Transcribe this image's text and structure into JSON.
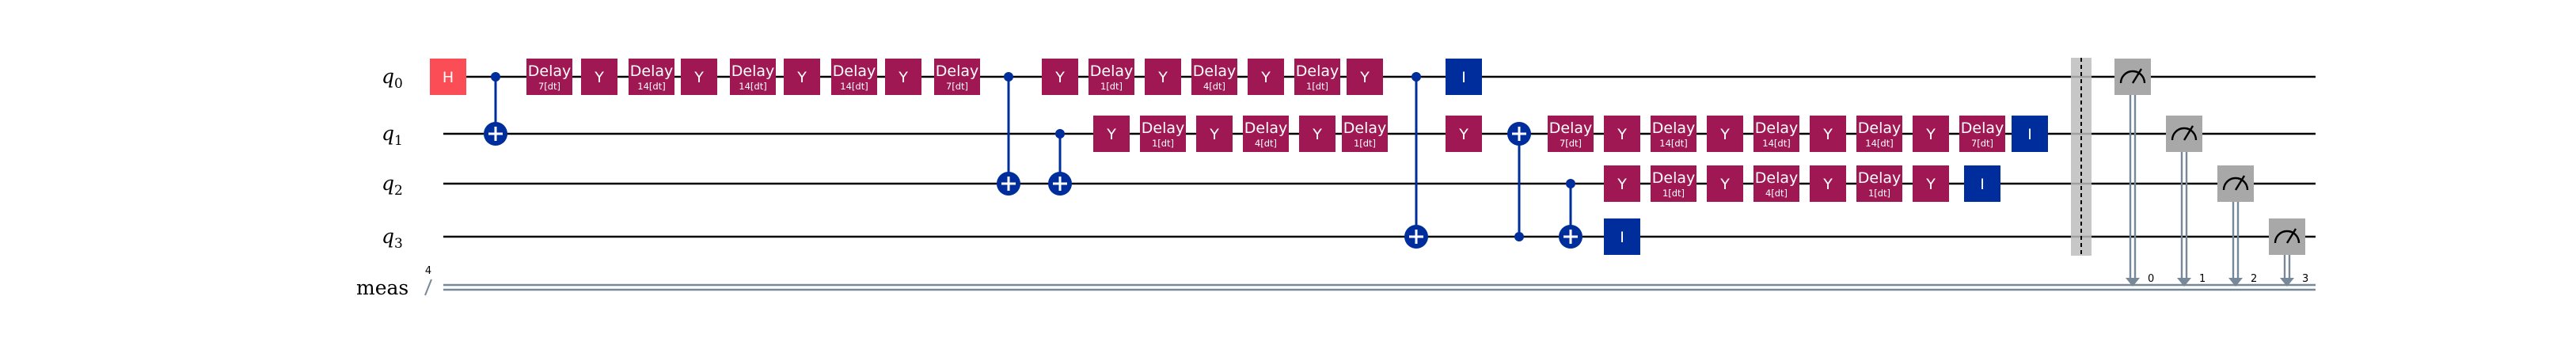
{
  "colors": {
    "h_gate": "#fa4d56",
    "y_gate": "#9f1853",
    "delay_gate": "#9f1853",
    "control": "#002d9c",
    "id_gate": "#002d9c",
    "measure": "#a8a8a8",
    "barrier": "#bdbdbd",
    "classical": "#778899",
    "wire": "#000000"
  },
  "circuit": {
    "qubit_labels": [
      {
        "name": "q",
        "index": "0"
      },
      {
        "name": "q",
        "index": "1"
      },
      {
        "name": "q",
        "index": "2"
      },
      {
        "name": "q",
        "index": "3"
      }
    ],
    "classical_label": "meas",
    "classical_width": "4",
    "gates": [
      {
        "type": "H",
        "qubit": 0,
        "col": 0,
        "label": "H"
      },
      {
        "type": "CX",
        "control": 0,
        "target": 1,
        "col": 1
      },
      {
        "type": "Delay",
        "qubit": 0,
        "col": 2,
        "label": "Delay",
        "param": "7[dt]"
      },
      {
        "type": "Y",
        "qubit": 0,
        "col": 3,
        "label": "Y"
      },
      {
        "type": "Delay",
        "qubit": 0,
        "col": 4,
        "label": "Delay",
        "param": "14[dt]"
      },
      {
        "type": "Y",
        "qubit": 0,
        "col": 5,
        "label": "Y"
      },
      {
        "type": "Delay",
        "qubit": 0,
        "col": 6,
        "label": "Delay",
        "param": "14[dt]"
      },
      {
        "type": "Y",
        "qubit": 0,
        "col": 7,
        "label": "Y"
      },
      {
        "type": "Delay",
        "qubit": 0,
        "col": 8,
        "label": "Delay",
        "param": "14[dt]"
      },
      {
        "type": "Y",
        "qubit": 0,
        "col": 9,
        "label": "Y"
      },
      {
        "type": "Delay",
        "qubit": 0,
        "col": 10,
        "label": "Delay",
        "param": "7[dt]"
      },
      {
        "type": "CX",
        "control": 0,
        "target": 2,
        "col": 11
      },
      {
        "type": "CX",
        "control": 1,
        "target": 2,
        "col": 12
      },
      {
        "type": "Y",
        "qubit": 0,
        "col": 12,
        "label": "Y"
      },
      {
        "type": "Delay",
        "qubit": 0,
        "col": 13,
        "label": "Delay",
        "param": "1[dt]"
      },
      {
        "type": "Y",
        "qubit": 0,
        "col": 14,
        "label": "Y"
      },
      {
        "type": "Delay",
        "qubit": 0,
        "col": 15,
        "label": "Delay",
        "param": "4[dt]"
      },
      {
        "type": "Y",
        "qubit": 0,
        "col": 16,
        "label": "Y"
      },
      {
        "type": "Delay",
        "qubit": 0,
        "col": 17,
        "label": "Delay",
        "param": "1[dt]"
      },
      {
        "type": "Y",
        "qubit": 0,
        "col": 18,
        "label": "Y"
      },
      {
        "type": "Y",
        "qubit": 1,
        "col": 13,
        "label": "Y"
      },
      {
        "type": "Delay",
        "qubit": 1,
        "col": 14,
        "label": "Delay",
        "param": "1[dt]"
      },
      {
        "type": "Y",
        "qubit": 1,
        "col": 15,
        "label": "Y"
      },
      {
        "type": "Delay",
        "qubit": 1,
        "col": 16,
        "label": "Delay",
        "param": "4[dt]"
      },
      {
        "type": "Y",
        "qubit": 1,
        "col": 17,
        "label": "Y"
      },
      {
        "type": "Delay",
        "qubit": 1,
        "col": 18,
        "label": "Delay",
        "param": "1[dt]"
      },
      {
        "type": "CX",
        "control": 0,
        "target": 3,
        "col": 19
      },
      {
        "type": "I",
        "qubit": 0,
        "col": 20,
        "label": "I"
      },
      {
        "type": "Y",
        "qubit": 1,
        "col": 20,
        "label": "Y"
      },
      {
        "type": "CX",
        "control": 3,
        "target": 1,
        "col": 21
      },
      {
        "type": "CX",
        "control": 2,
        "target": 3,
        "col": 22
      },
      {
        "type": "Delay",
        "qubit": 1,
        "col": 22,
        "label": "Delay",
        "param": "7[dt]"
      },
      {
        "type": "Y",
        "qubit": 1,
        "col": 23,
        "label": "Y"
      },
      {
        "type": "Delay",
        "qubit": 1,
        "col": 24,
        "label": "Delay",
        "param": "14[dt]"
      },
      {
        "type": "Y",
        "qubit": 1,
        "col": 25,
        "label": "Y"
      },
      {
        "type": "Delay",
        "qubit": 1,
        "col": 26,
        "label": "Delay",
        "param": "14[dt]"
      },
      {
        "type": "Y",
        "qubit": 1,
        "col": 27,
        "label": "Y"
      },
      {
        "type": "Delay",
        "qubit": 1,
        "col": 28,
        "label": "Delay",
        "param": "14[dt]"
      },
      {
        "type": "Y",
        "qubit": 1,
        "col": 29,
        "label": "Y"
      },
      {
        "type": "Delay",
        "qubit": 1,
        "col": 30,
        "label": "Delay",
        "param": "7[dt]"
      },
      {
        "type": "I",
        "qubit": 1,
        "col": 31,
        "label": "I"
      },
      {
        "type": "Y",
        "qubit": 2,
        "col": 23,
        "label": "Y"
      },
      {
        "type": "Delay",
        "qubit": 2,
        "col": 24,
        "label": "Delay",
        "param": "1[dt]"
      },
      {
        "type": "Y",
        "qubit": 2,
        "col": 25,
        "label": "Y"
      },
      {
        "type": "Delay",
        "qubit": 2,
        "col": 26,
        "label": "Delay",
        "param": "4[dt]"
      },
      {
        "type": "Y",
        "qubit": 2,
        "col": 27,
        "label": "Y"
      },
      {
        "type": "Delay",
        "qubit": 2,
        "col": 28,
        "label": "Delay",
        "param": "1[dt]"
      },
      {
        "type": "Y",
        "qubit": 2,
        "col": 29,
        "label": "Y"
      },
      {
        "type": "I",
        "qubit": 2,
        "col": 30,
        "label": "I"
      },
      {
        "type": "I",
        "qubit": 3,
        "col": 23,
        "label": "I"
      }
    ],
    "barrier": {
      "col": 32
    },
    "measurements": [
      {
        "qubit": 0,
        "clbit": "0",
        "col": 33
      },
      {
        "qubit": 1,
        "clbit": "1",
        "col": 34
      },
      {
        "qubit": 2,
        "clbit": "2",
        "col": 35
      },
      {
        "qubit": 3,
        "clbit": "3",
        "col": 36
      }
    ]
  }
}
